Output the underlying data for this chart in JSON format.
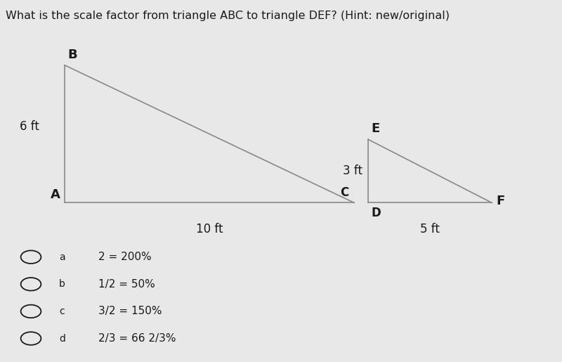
{
  "title": "What is the scale factor from triangle ABC to triangle DEF? (Hint: new/original)",
  "title_fontsize": 11.5,
  "background_color": "#e8e8e8",
  "triangle_ABC": {
    "A": [
      0.115,
      0.44
    ],
    "B": [
      0.115,
      0.82
    ],
    "C": [
      0.63,
      0.44
    ],
    "label_A": "A",
    "label_B": "B",
    "label_C": "C",
    "side_label_AB": "6 ft",
    "side_label_AC": "10 ft",
    "line_color": "#888888",
    "line_width": 1.2
  },
  "triangle_DEF": {
    "D": [
      0.655,
      0.44
    ],
    "E": [
      0.655,
      0.615
    ],
    "F": [
      0.875,
      0.44
    ],
    "label_D": "D",
    "label_E": "E",
    "label_F": "F",
    "side_label_DE": "3 ft",
    "side_label_DF": "5 ft",
    "line_color": "#888888",
    "line_width": 1.2
  },
  "options": [
    {
      "letter": "a",
      "text": "2 = 200%"
    },
    {
      "letter": "b",
      "text": "1/2 = 50%"
    },
    {
      "letter": "c",
      "text": "3/2 = 150%"
    },
    {
      "letter": "d",
      "text": "2/3 = 66 2/3%"
    }
  ],
  "text_color": "#1a1a1a",
  "label_fontsize": 13,
  "measure_fontsize": 12,
  "option_fontsize": 11
}
